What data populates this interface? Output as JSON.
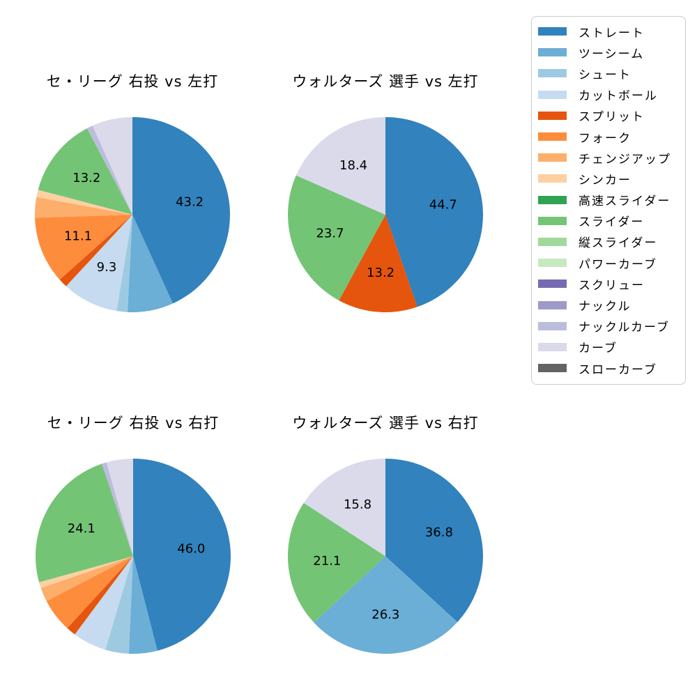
{
  "page": {
    "background_color": "#ffffff",
    "text_color": "#000000"
  },
  "pitch_types": [
    {
      "id": "straight",
      "label": "ストレート",
      "color": "#3182bd"
    },
    {
      "id": "two-seam",
      "label": "ツーシーム",
      "color": "#6baed6"
    },
    {
      "id": "shoot",
      "label": "シュート",
      "color": "#9ecae1"
    },
    {
      "id": "cut-ball",
      "label": "カットボール",
      "color": "#c6dbef"
    },
    {
      "id": "split",
      "label": "スプリット",
      "color": "#e6550d"
    },
    {
      "id": "fork",
      "label": "フォーク",
      "color": "#fd8d3c"
    },
    {
      "id": "changeup",
      "label": "チェンジアップ",
      "color": "#fdae6b"
    },
    {
      "id": "sinker",
      "label": "シンカー",
      "color": "#fdd0a2"
    },
    {
      "id": "fast-slider",
      "label": "高速スライダー",
      "color": "#31a354"
    },
    {
      "id": "slider",
      "label": "スライダー",
      "color": "#74c476"
    },
    {
      "id": "vertical-slider",
      "label": "縦スライダー",
      "color": "#a1d99b"
    },
    {
      "id": "power-curve",
      "label": "パワーカーブ",
      "color": "#c7e9c0"
    },
    {
      "id": "screw",
      "label": "スクリュー",
      "color": "#756bb1"
    },
    {
      "id": "knuckle",
      "label": "ナックル",
      "color": "#9e9ac8"
    },
    {
      "id": "knuckle-curve",
      "label": "ナックルカーブ",
      "color": "#bcbddc"
    },
    {
      "id": "curve",
      "label": "カーブ",
      "color": "#dadaeb"
    },
    {
      "id": "slow-curve",
      "label": "スローカーブ",
      "color": "#636363"
    }
  ],
  "legend": {
    "position": "upper-right",
    "border_color": "#cccccc",
    "background_color": "#ffffff"
  },
  "chart_data": [
    {
      "type": "pie",
      "id": "ce-league-right-pitcher-vs-left-batter",
      "title": "セ・リーグ 右投 vs 左打",
      "start_angle": "top",
      "direction": "clockwise",
      "label_threshold": 9,
      "label_radius_ratio": 0.6,
      "slices": [
        {
          "pitch": "straight",
          "value": 43.2
        },
        {
          "pitch": "two-seam",
          "value": 7.6
        },
        {
          "pitch": "shoot",
          "value": 1.8
        },
        {
          "pitch": "cut-ball",
          "value": 9.3
        },
        {
          "pitch": "split",
          "value": 1.5
        },
        {
          "pitch": "fork",
          "value": 11.1
        },
        {
          "pitch": "changeup",
          "value": 3.4
        },
        {
          "pitch": "sinker",
          "value": 1.2
        },
        {
          "pitch": "slider",
          "value": 13.2
        },
        {
          "pitch": "knuckle-curve",
          "value": 1.0
        },
        {
          "pitch": "curve",
          "value": 6.7
        }
      ]
    },
    {
      "type": "pie",
      "id": "walters-vs-left-batter",
      "title": "ウォルターズ 選手 vs 左打",
      "start_angle": "top",
      "direction": "clockwise",
      "label_threshold": 9,
      "label_radius_ratio": 0.6,
      "slices": [
        {
          "pitch": "straight",
          "value": 44.7
        },
        {
          "pitch": "split",
          "value": 13.2
        },
        {
          "pitch": "slider",
          "value": 23.7
        },
        {
          "pitch": "curve",
          "value": 18.4
        }
      ]
    },
    {
      "type": "pie",
      "id": "ce-league-right-pitcher-vs-right-batter",
      "title": "セ・リーグ 右投 vs 右打",
      "start_angle": "top",
      "direction": "clockwise",
      "label_threshold": 9,
      "label_radius_ratio": 0.6,
      "slices": [
        {
          "pitch": "straight",
          "value": 46.0
        },
        {
          "pitch": "two-seam",
          "value": 4.7
        },
        {
          "pitch": "shoot",
          "value": 3.9
        },
        {
          "pitch": "cut-ball",
          "value": 5.6
        },
        {
          "pitch": "split",
          "value": 1.6
        },
        {
          "pitch": "fork",
          "value": 5.6
        },
        {
          "pitch": "changeup",
          "value": 2.3
        },
        {
          "pitch": "sinker",
          "value": 1.0
        },
        {
          "pitch": "slider",
          "value": 24.1
        },
        {
          "pitch": "knuckle-curve",
          "value": 0.8
        },
        {
          "pitch": "curve",
          "value": 4.4
        }
      ]
    },
    {
      "type": "pie",
      "id": "walters-vs-right-batter",
      "title": "ウォルターズ 選手 vs 右打",
      "start_angle": "top",
      "direction": "clockwise",
      "label_threshold": 9,
      "label_radius_ratio": 0.6,
      "slices": [
        {
          "pitch": "straight",
          "value": 36.8
        },
        {
          "pitch": "two-seam",
          "value": 26.3
        },
        {
          "pitch": "slider",
          "value": 21.1
        },
        {
          "pitch": "curve",
          "value": 15.8
        }
      ]
    }
  ]
}
